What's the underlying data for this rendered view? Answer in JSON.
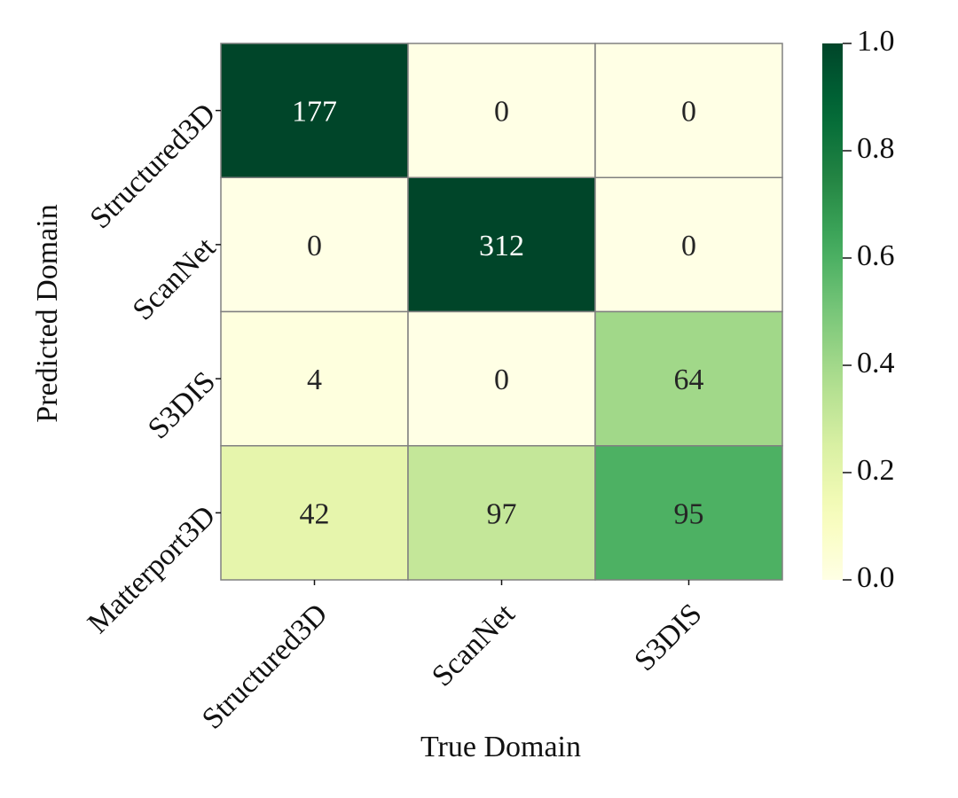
{
  "chart_data": {
    "type": "heatmap",
    "title": "",
    "xlabel": "True Domain",
    "ylabel": "Predicted Domain",
    "x_categories": [
      "Structured3D",
      "ScanNet",
      "S3DIS"
    ],
    "y_categories": [
      "Structured3D",
      "ScanNet",
      "S3DIS",
      "Matterport3D"
    ],
    "values": [
      [
        177,
        0,
        0
      ],
      [
        0,
        312,
        0
      ],
      [
        4,
        0,
        64
      ],
      [
        42,
        97,
        95
      ]
    ],
    "normalized_values": [
      [
        1.0,
        0.0,
        0.0
      ],
      [
        0.0,
        1.0,
        0.0
      ],
      [
        0.0189,
        0.0,
        0.4029
      ],
      [
        0.1967,
        0.3107,
        0.5971
      ]
    ],
    "colorbar": {
      "range": [
        0.0,
        1.0
      ],
      "ticks": [
        "0.0",
        "0.2",
        "0.4",
        "0.6",
        "0.8",
        "1.0"
      ],
      "colormap": "YlGn"
    },
    "colors": {
      "low": "#ffffe5",
      "high": "#004529",
      "cell_border": "#808080",
      "text_light": "#ffffff",
      "text_dark": "#262626"
    }
  }
}
